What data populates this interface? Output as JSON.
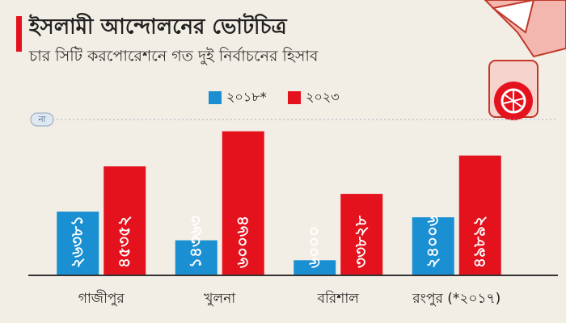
{
  "chart_data": {
    "type": "bar",
    "title": "ইসলামী আন্দোলনের ভোটচিত্র",
    "subtitle": "চার সিটি করপোরেশনে গত দুই নির্বাচনের হিসাব",
    "axis_badge": "না",
    "categories": [
      "গাজীপুর",
      "খুলনা",
      "বরিশাল",
      "রংপুর (*২০১৭)"
    ],
    "series": [
      {
        "name": "২০১৮*",
        "color": "#1a8fd2",
        "values": [
          26381,
          14363,
          6000,
          24006
        ],
        "value_labels": [
          "২৬৩৮১",
          "১৪৩৬৩",
          "৬০০০",
          "২৪০০৬"
        ]
      },
      {
        "name": "২০২৩",
        "color": "#e3121d",
        "values": [
          45352,
          60064,
          33828,
          49892
        ],
        "value_labels": [
          "৪৫৩৫২",
          "৬০০৬৪",
          "৩৩৮২৮",
          "৪৯৮৯২"
        ]
      }
    ],
    "ylim": [
      0,
      65000
    ]
  }
}
